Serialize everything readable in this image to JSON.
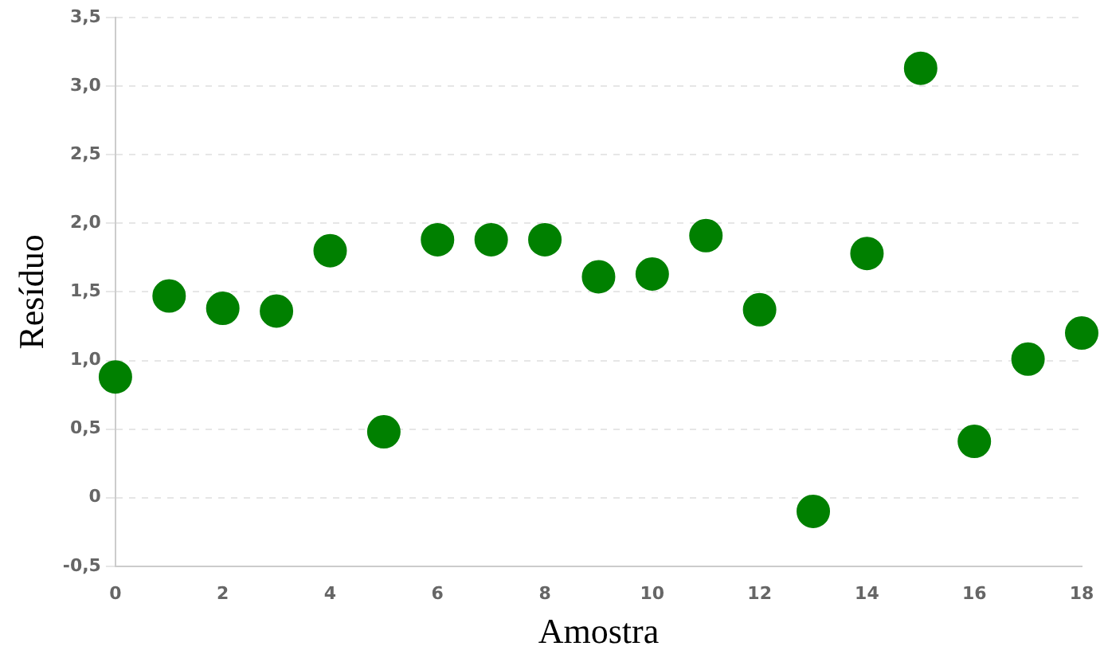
{
  "chart_data": {
    "type": "scatter",
    "xlabel": "Amostra",
    "ylabel": "Resíduo",
    "x": [
      0,
      1,
      2,
      3,
      4,
      5,
      6,
      7,
      8,
      9,
      10,
      11,
      12,
      13,
      14,
      15,
      16,
      17,
      18
    ],
    "series": [
      {
        "color": "#008000",
        "values": [
          0.88,
          1.47,
          1.38,
          1.36,
          1.8,
          0.48,
          1.88,
          1.88,
          1.88,
          1.61,
          1.63,
          1.91,
          1.37,
          -0.1,
          1.78,
          3.13,
          0.41,
          1.01,
          1.2
        ]
      }
    ],
    "xlim": [
      0,
      18
    ],
    "xticks": [
      0,
      2,
      4,
      6,
      8,
      10,
      12,
      14,
      16,
      18
    ],
    "ylim": [
      -0.5,
      3.5
    ],
    "yticks": [
      {
        "value": -0.5,
        "label": "-0,5"
      },
      0,
      {
        "value": 0.5,
        "label": "0,5"
      },
      {
        "value": 1,
        "label": "1,0"
      },
      {
        "value": 1.5,
        "label": "1,5"
      },
      {
        "value": 2,
        "label": "2,0"
      },
      {
        "value": 2.5,
        "label": "2,5"
      },
      {
        "value": 3,
        "label": "3,0"
      },
      {
        "value": 3.5,
        "label": "3,5"
      }
    ],
    "grid": "y",
    "legend": false,
    "marker": "circle"
  }
}
